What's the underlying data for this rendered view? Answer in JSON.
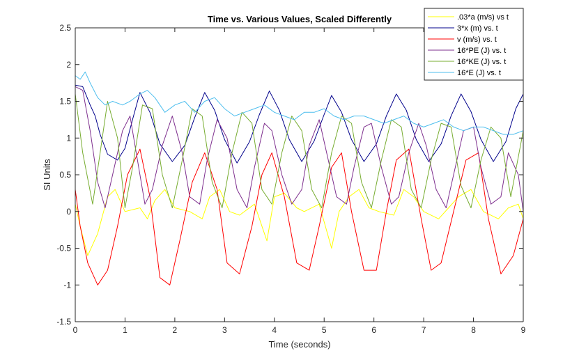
{
  "chart_data": {
    "type": "line",
    "title": "Time vs. Various Values, Scaled Differently",
    "xlabel": "Time (seconds)",
    "ylabel": "SI Units",
    "xlim": [
      0,
      9
    ],
    "ylim": [
      -1.5,
      2.5
    ],
    "x_ticks": [
      0,
      1,
      2,
      3,
      4,
      5,
      6,
      7,
      8,
      9
    ],
    "x_tick_labels": [
      "0",
      "1",
      "2",
      "3",
      "4",
      "5",
      "6",
      "7",
      "8",
      "9"
    ],
    "y_ticks": [
      -1.5,
      -1,
      -0.5,
      0,
      0.5,
      1,
      1.5,
      2,
      2.5
    ],
    "y_tick_labels": [
      "-1.5",
      "-1",
      "-0.5",
      "0",
      "0.5",
      "1",
      "1.5",
      "2",
      "2.5"
    ],
    "grid": false,
    "legend_position": "top-right",
    "series": [
      {
        "name": ".03*a (m/s) vs t",
        "color": "#ffff00",
        "x": [
          0,
          0.1,
          0.25,
          0.45,
          0.65,
          0.8,
          1.0,
          1.3,
          1.45,
          1.6,
          1.8,
          2.0,
          2.3,
          2.55,
          2.7,
          2.9,
          3.1,
          3.3,
          3.6,
          3.85,
          4.0,
          4.2,
          4.45,
          4.6,
          4.9,
          5.15,
          5.3,
          5.5,
          5.7,
          5.9,
          6.1,
          6.4,
          6.6,
          6.8,
          7.0,
          7.3,
          7.5,
          7.7,
          7.95,
          8.2,
          8.5,
          8.7,
          8.9,
          9.0
        ],
        "y": [
          0.1,
          -0.2,
          -0.6,
          -0.3,
          0.2,
          0.3,
          0.0,
          0.05,
          -0.1,
          0.15,
          0.3,
          0.05,
          0.0,
          -0.1,
          0.2,
          0.3,
          0.0,
          -0.05,
          0.1,
          -0.4,
          0.2,
          0.25,
          0.05,
          0.0,
          0.1,
          -0.5,
          0.0,
          0.2,
          0.3,
          0.05,
          0.0,
          -0.05,
          0.3,
          0.2,
          0.0,
          -0.1,
          0.05,
          0.2,
          0.3,
          0.0,
          -0.1,
          0.05,
          0.1,
          -0.1
        ]
      },
      {
        "name": "3*x (m) vs. t",
        "color": "#00008b",
        "x": [
          0,
          0.15,
          0.3,
          0.4,
          0.5,
          0.65,
          0.85,
          1.0,
          1.15,
          1.3,
          1.5,
          1.7,
          1.95,
          2.2,
          2.4,
          2.6,
          2.8,
          3.0,
          3.25,
          3.5,
          3.7,
          3.9,
          4.1,
          4.3,
          4.55,
          4.8,
          5.0,
          5.15,
          5.35,
          5.55,
          5.8,
          6.05,
          6.25,
          6.45,
          6.65,
          6.85,
          7.1,
          7.35,
          7.55,
          7.75,
          7.95,
          8.15,
          8.4,
          8.65,
          8.85,
          9.0
        ],
        "y": [
          1.72,
          1.7,
          1.45,
          1.3,
          1.05,
          0.78,
          0.7,
          0.86,
          1.25,
          1.62,
          1.35,
          0.92,
          0.68,
          0.9,
          1.28,
          1.62,
          1.38,
          0.98,
          0.66,
          0.95,
          1.32,
          1.64,
          1.38,
          0.98,
          0.68,
          0.96,
          1.32,
          1.58,
          1.35,
          0.98,
          0.68,
          0.92,
          1.3,
          1.6,
          1.38,
          0.98,
          0.68,
          0.92,
          1.3,
          1.6,
          1.36,
          0.98,
          0.68,
          0.95,
          1.4,
          1.6
        ]
      },
      {
        "name": "v (m/s) vs. t",
        "color": "#ff0000",
        "x": [
          0,
          0.1,
          0.25,
          0.45,
          0.65,
          0.85,
          1.05,
          1.3,
          1.5,
          1.7,
          1.9,
          2.1,
          2.35,
          2.6,
          2.85,
          3.05,
          3.3,
          3.55,
          3.75,
          3.95,
          4.2,
          4.45,
          4.7,
          4.9,
          5.15,
          5.35,
          5.55,
          5.8,
          6.05,
          6.25,
          6.45,
          6.7,
          6.95,
          7.15,
          7.35,
          7.6,
          7.85,
          8.1,
          8.3,
          8.55,
          8.8,
          9.0
        ],
        "y": [
          0.3,
          -0.2,
          -0.7,
          -1.0,
          -0.8,
          -0.2,
          0.5,
          0.85,
          0.2,
          -0.9,
          -1.0,
          -0.4,
          0.4,
          0.8,
          0.3,
          -0.7,
          -0.85,
          -0.2,
          0.5,
          0.8,
          0.2,
          -0.7,
          -0.8,
          -0.2,
          0.6,
          0.8,
          0.0,
          -0.8,
          -0.8,
          0.0,
          0.7,
          0.85,
          -0.1,
          -0.8,
          -0.7,
          0.0,
          0.7,
          0.8,
          -0.1,
          -0.85,
          -0.6,
          -0.1
        ]
      },
      {
        "name": "16*PE (J) vs. t",
        "color": "#7e2f8e",
        "x": [
          0,
          0.15,
          0.3,
          0.45,
          0.6,
          0.75,
          0.95,
          1.1,
          1.25,
          1.4,
          1.55,
          1.75,
          1.95,
          2.15,
          2.3,
          2.5,
          2.65,
          2.85,
          3.05,
          3.25,
          3.45,
          3.6,
          3.8,
          3.95,
          4.15,
          4.35,
          4.55,
          4.7,
          4.9,
          5.05,
          5.25,
          5.45,
          5.6,
          5.8,
          5.95,
          6.15,
          6.35,
          6.5,
          6.7,
          6.9,
          7.05,
          7.25,
          7.45,
          7.6,
          7.8,
          8.0,
          8.15,
          8.35,
          8.55,
          8.7,
          8.9,
          9.0
        ],
        "y": [
          1.7,
          1.65,
          1.1,
          0.4,
          0.05,
          0.5,
          1.1,
          1.3,
          0.7,
          0.1,
          0.3,
          0.9,
          1.3,
          0.8,
          0.2,
          0.1,
          0.7,
          1.25,
          1.0,
          0.3,
          0.05,
          0.6,
          1.2,
          1.1,
          0.5,
          0.1,
          0.3,
          0.9,
          1.25,
          0.8,
          0.2,
          0.1,
          0.6,
          1.15,
          1.2,
          0.6,
          0.1,
          0.2,
          0.8,
          1.2,
          0.9,
          0.3,
          0.05,
          0.5,
          1.1,
          1.15,
          0.6,
          0.1,
          0.2,
          0.8,
          0.5,
          0.0
        ]
      },
      {
        "name": "16*KE (J) vs. t",
        "color": "#77ac30",
        "x": [
          0,
          0.15,
          0.35,
          0.5,
          0.65,
          0.85,
          1.0,
          1.15,
          1.35,
          1.55,
          1.75,
          1.95,
          2.15,
          2.35,
          2.55,
          2.75,
          2.95,
          3.15,
          3.35,
          3.55,
          3.75,
          3.95,
          4.15,
          4.35,
          4.55,
          4.75,
          4.95,
          5.15,
          5.35,
          5.55,
          5.75,
          5.95,
          6.15,
          6.35,
          6.55,
          6.75,
          6.95,
          7.15,
          7.35,
          7.55,
          7.75,
          7.95,
          8.15,
          8.35,
          8.55,
          8.75,
          9.0
        ],
        "y": [
          1.6,
          0.8,
          0.1,
          0.8,
          1.5,
          1.0,
          0.05,
          0.6,
          1.45,
          1.4,
          0.5,
          0.05,
          0.7,
          1.4,
          1.3,
          0.4,
          0.05,
          0.8,
          1.35,
          1.2,
          0.3,
          0.1,
          0.8,
          1.3,
          1.1,
          0.3,
          0.05,
          0.8,
          1.3,
          1.2,
          0.4,
          0.05,
          0.7,
          1.25,
          1.15,
          0.3,
          0.05,
          0.7,
          1.2,
          1.15,
          0.35,
          0.05,
          0.7,
          1.15,
          1.0,
          0.2,
          1.1
        ]
      },
      {
        "name": "16*E (J) vs. t",
        "color": "#4dbeee",
        "x": [
          0,
          0.1,
          0.2,
          0.3,
          0.45,
          0.6,
          0.75,
          0.95,
          1.1,
          1.3,
          1.45,
          1.6,
          1.8,
          2.0,
          2.2,
          2.4,
          2.6,
          2.8,
          3.0,
          3.2,
          3.4,
          3.6,
          3.8,
          4.0,
          4.2,
          4.4,
          4.6,
          4.8,
          5.0,
          5.2,
          5.4,
          5.6,
          5.8,
          6.0,
          6.2,
          6.4,
          6.6,
          6.8,
          7.0,
          7.2,
          7.4,
          7.6,
          7.8,
          8.0,
          8.2,
          8.4,
          8.6,
          8.8,
          9.0
        ],
        "y": [
          1.85,
          1.8,
          1.9,
          1.75,
          1.55,
          1.45,
          1.5,
          1.45,
          1.5,
          1.6,
          1.65,
          1.55,
          1.35,
          1.45,
          1.5,
          1.35,
          1.5,
          1.55,
          1.4,
          1.3,
          1.35,
          1.4,
          1.45,
          1.35,
          1.3,
          1.25,
          1.35,
          1.35,
          1.4,
          1.3,
          1.25,
          1.3,
          1.3,
          1.25,
          1.2,
          1.25,
          1.3,
          1.2,
          1.15,
          1.2,
          1.25,
          1.15,
          1.1,
          1.15,
          1.15,
          1.1,
          1.05,
          1.05,
          1.1
        ]
      }
    ]
  }
}
